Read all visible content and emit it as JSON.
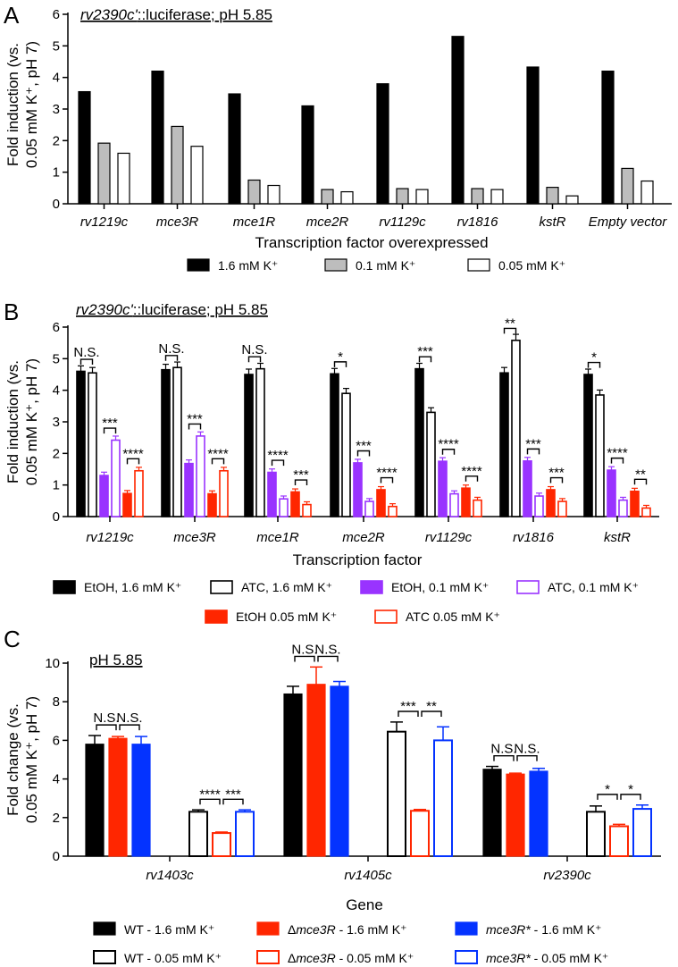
{
  "chart_data": [
    {
      "type": "bar",
      "panel_letter": "A",
      "title_gene": "rv2390c'",
      "title_rest": "::luciferase; pH 5.85",
      "ylabel_line1": "Fold induction (vs.",
      "ylabel_line2": "0.05 mM K⁺, pH 7)",
      "xlabel": "Transcription factor overexpressed",
      "ylim": [
        0,
        6
      ],
      "yticks": [
        "0",
        "1",
        "2",
        "3",
        "4",
        "5",
        "6"
      ],
      "categories": [
        "rv1219c",
        "mce3R",
        "mce1R",
        "mce2R",
        "rv1129c",
        "rv1816",
        "kstR",
        "Empty vector"
      ],
      "series": [
        {
          "name": "1.6 mM K⁺",
          "color": "#000000",
          "fill": "#000000",
          "values": [
            3.55,
            4.2,
            3.48,
            3.1,
            3.8,
            5.3,
            4.33,
            4.2
          ]
        },
        {
          "name": "0.1 mM K⁺",
          "color": "#000000",
          "fill": "#bdbdbd",
          "values": [
            1.92,
            2.45,
            0.75,
            0.45,
            0.48,
            0.48,
            0.52,
            1.12
          ]
        },
        {
          "name": "0.05 mM K⁺",
          "color": "#000000",
          "fill": "#ffffff",
          "values": [
            1.6,
            1.82,
            0.58,
            0.38,
            0.45,
            0.45,
            0.25,
            0.72
          ]
        }
      ]
    },
    {
      "type": "bar",
      "panel_letter": "B",
      "title_gene": "rv2390c'",
      "title_rest": "::luciferase; pH 5.85",
      "ylabel_line1": "Fold induction (vs.",
      "ylabel_line2": "0.05 mM K⁺, pH 7)",
      "xlabel": "Transcription factor",
      "ylim": [
        0,
        6
      ],
      "yticks": [
        "0",
        "1",
        "2",
        "3",
        "4",
        "5",
        "6"
      ],
      "categories": [
        "rv1219c",
        "mce3R",
        "mce1R",
        "mce2R",
        "rv1129c",
        "rv1816",
        "kstR"
      ],
      "series": [
        {
          "name": "EtOH, 1.6 mM K⁺",
          "color": "#000000",
          "fill": "#000000",
          "values": [
            4.6,
            4.65,
            4.5,
            4.52,
            4.68,
            4.55,
            4.5
          ]
        },
        {
          "name": "ATC, 1.6 mM K⁺",
          "color": "#000000",
          "fill": "#ffffff",
          "values": [
            4.55,
            4.72,
            4.68,
            3.9,
            3.3,
            5.58,
            3.85
          ]
        },
        {
          "name": "EtOH, 0.1 mM K⁺",
          "color": "#9933ff",
          "fill": "#9933ff",
          "values": [
            1.3,
            1.68,
            1.4,
            1.7,
            1.75,
            1.76,
            1.47
          ]
        },
        {
          "name": "ATC, 0.1 mM K⁺",
          "color": "#9933ff",
          "fill": "#ffffff",
          "values": [
            2.42,
            2.55,
            0.56,
            0.48,
            0.72,
            0.65,
            0.52
          ]
        },
        {
          "name": "EtOH 0.05 mM K⁺",
          "color": "#ff2600",
          "fill": "#ff2600",
          "values": [
            0.73,
            0.72,
            0.78,
            0.85,
            0.9,
            0.85,
            0.8
          ]
        },
        {
          "name": "ATC 0.05 mM K⁺",
          "color": "#ff2600",
          "fill": "#ffffff",
          "values": [
            1.45,
            1.45,
            0.38,
            0.32,
            0.52,
            0.48,
            0.27
          ]
        }
      ],
      "significance": [
        {
          "group": 0,
          "from": 0,
          "to": 1,
          "label": "N.S."
        },
        {
          "group": 0,
          "from": 2,
          "to": 3,
          "label": "***"
        },
        {
          "group": 0,
          "from": 4,
          "to": 5,
          "label": "****"
        },
        {
          "group": 1,
          "from": 0,
          "to": 1,
          "label": "N.S."
        },
        {
          "group": 1,
          "from": 2,
          "to": 3,
          "label": "***"
        },
        {
          "group": 1,
          "from": 4,
          "to": 5,
          "label": "****"
        },
        {
          "group": 2,
          "from": 0,
          "to": 1,
          "label": "N.S."
        },
        {
          "group": 2,
          "from": 2,
          "to": 3,
          "label": "****"
        },
        {
          "group": 2,
          "from": 4,
          "to": 5,
          "label": "***"
        },
        {
          "group": 3,
          "from": 0,
          "to": 1,
          "label": "*"
        },
        {
          "group": 3,
          "from": 2,
          "to": 3,
          "label": "***"
        },
        {
          "group": 3,
          "from": 4,
          "to": 5,
          "label": "****"
        },
        {
          "group": 4,
          "from": 0,
          "to": 1,
          "label": "***"
        },
        {
          "group": 4,
          "from": 2,
          "to": 3,
          "label": "****"
        },
        {
          "group": 4,
          "from": 4,
          "to": 5,
          "label": "****"
        },
        {
          "group": 5,
          "from": 0,
          "to": 1,
          "label": "**"
        },
        {
          "group": 5,
          "from": 2,
          "to": 3,
          "label": "***"
        },
        {
          "group": 5,
          "from": 4,
          "to": 5,
          "label": "***"
        },
        {
          "group": 6,
          "from": 0,
          "to": 1,
          "label": "*"
        },
        {
          "group": 6,
          "from": 2,
          "to": 3,
          "label": "****"
        },
        {
          "group": 6,
          "from": 4,
          "to": 5,
          "label": "**"
        }
      ]
    },
    {
      "type": "bar",
      "panel_letter": "C",
      "title_text": "pH 5.85",
      "ylabel_line1": "Fold change (vs.",
      "ylabel_line2": "0.05 mM K⁺, pH 7)",
      "xlabel": "Gene",
      "ylim": [
        0,
        10
      ],
      "yticks": [
        "0",
        "2",
        "4",
        "6",
        "8",
        "10"
      ],
      "categories": [
        "rv1403c",
        "rv1405c",
        "rv2390c"
      ],
      "series": [
        {
          "name": "WT - 1.6 mM K⁺",
          "color": "#000000",
          "fill": "#000000",
          "values": [
            5.8,
            8.4,
            4.5
          ]
        },
        {
          "name": "Δmce3R - 1.6 mM K⁺",
          "color": "#ff2600",
          "fill": "#ff2600",
          "values": [
            6.1,
            8.9,
            4.25
          ]
        },
        {
          "name": "mce3R* - 1.6 mM K⁺",
          "color": "#0433ff",
          "fill": "#0433ff",
          "values": [
            5.8,
            8.8,
            4.4
          ]
        },
        {
          "name": "WT - 0.05 mM K⁺",
          "color": "#000000",
          "fill": "#ffffff",
          "values": [
            2.3,
            6.45,
            2.3
          ]
        },
        {
          "name": "Δmce3R - 0.05 mM K⁺",
          "color": "#ff2600",
          "fill": "#ffffff",
          "values": [
            1.2,
            2.35,
            1.55
          ]
        },
        {
          "name": "mce3R* - 0.05 mM K⁺",
          "color": "#0433ff",
          "fill": "#ffffff",
          "values": [
            2.3,
            6.0,
            2.45
          ]
        }
      ],
      "errors": [
        [
          0.45,
          0.4,
          0.15
        ],
        [
          0.1,
          0.9,
          0.05
        ],
        [
          0.4,
          0.25,
          0.15
        ],
        [
          0.1,
          0.5,
          0.3
        ],
        [
          0.05,
          0.07,
          0.1
        ],
        [
          0.1,
          0.7,
          0.2
        ]
      ],
      "significance": [
        {
          "group": 0,
          "from": 0,
          "to": 1,
          "label": "N.S."
        },
        {
          "group": 0,
          "from": 1,
          "to": 2,
          "label": "N.S."
        },
        {
          "group": 0,
          "from": 3,
          "to": 4,
          "label": "****"
        },
        {
          "group": 0,
          "from": 4,
          "to": 5,
          "label": "***"
        },
        {
          "group": 1,
          "from": 0,
          "to": 1,
          "label": "N.S."
        },
        {
          "group": 1,
          "from": 1,
          "to": 2,
          "label": "N.S."
        },
        {
          "group": 1,
          "from": 3,
          "to": 4,
          "label": "***"
        },
        {
          "group": 1,
          "from": 4,
          "to": 5,
          "label": "**"
        },
        {
          "group": 2,
          "from": 0,
          "to": 1,
          "label": "N.S."
        },
        {
          "group": 2,
          "from": 1,
          "to": 2,
          "label": "N.S."
        },
        {
          "group": 2,
          "from": 3,
          "to": 4,
          "label": "*"
        },
        {
          "group": 2,
          "from": 4,
          "to": 5,
          "label": "*"
        }
      ]
    }
  ]
}
